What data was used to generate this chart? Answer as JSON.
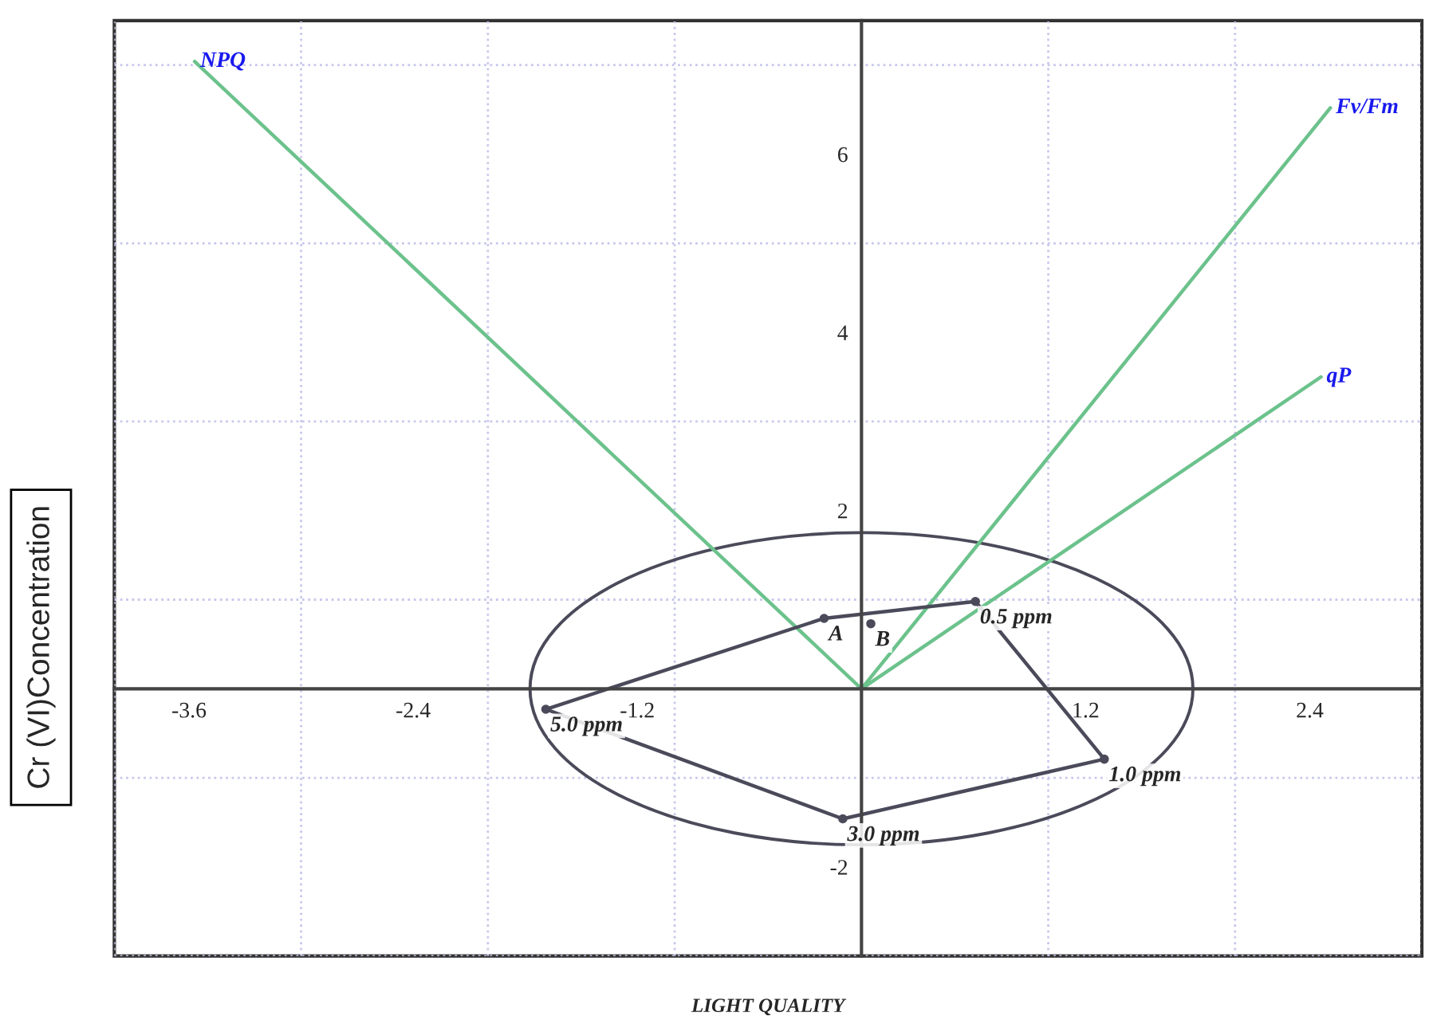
{
  "chart_data": {
    "type": "line",
    "xlabel": "LIGHT QUALITY",
    "ylabel": "Cr (VI)Concentration",
    "xlim": [
      -4,
      3.0
    ],
    "ylim": [
      -3,
      7.5
    ],
    "xticks": [
      {
        "value": -4,
        "label": null
      },
      {
        "value": -3,
        "label": null
      },
      {
        "value": -2,
        "label": null
      },
      {
        "value": -1,
        "label": null
      },
      {
        "value": 1,
        "label": null
      },
      {
        "value": 2,
        "label": null
      },
      {
        "value": 3,
        "label": null
      },
      {
        "value": -3.6,
        "label": "-3.6"
      },
      {
        "value": -2.4,
        "label": "-2.4"
      },
      {
        "value": -1.2,
        "label": "-1.2"
      },
      {
        "value": 1.2,
        "label": "1.2"
      },
      {
        "value": 2.4,
        "label": "2.4"
      }
    ],
    "yticks": [
      {
        "value": -3,
        "label": null
      },
      {
        "value": -1,
        "label": null
      },
      {
        "value": 1,
        "label": null
      },
      {
        "value": 3,
        "label": null
      },
      {
        "value": 5,
        "label": null
      },
      {
        "value": 7,
        "label": null
      },
      -2,
      2,
      4,
      6
    ],
    "grid": true,
    "legend": false,
    "series": [
      {
        "name": "NPQ",
        "color": "#6cc28c",
        "x": [
          0,
          -3.57
        ],
        "values": [
          0,
          7.04
        ]
      },
      {
        "name": "Fv/Fm",
        "color": "#6cc28c",
        "x": [
          0,
          2.51
        ],
        "values": [
          0,
          6.52
        ]
      },
      {
        "name": "qP",
        "color": "#6cc28c",
        "x": [
          0,
          2.46
        ],
        "values": [
          0,
          3.5
        ]
      },
      {
        "type": "line",
        "color": "#4a4a5a",
        "x": [
          -1.69,
          -0.2,
          0.61,
          1.3
        ],
        "values": [
          -0.23,
          0.79,
          0.98,
          -0.79
        ]
      },
      {
        "type": "line",
        "color": "#4a4a5a",
        "x": [
          -1.69,
          -0.1,
          1.3
        ],
        "values": [
          -0.23,
          -1.46,
          -0.79
        ]
      },
      {
        "type": "scatter",
        "color": "#4a4a5a",
        "marker": "circle",
        "x": [
          -0.2,
          0.61,
          1.3,
          -0.1,
          -1.69,
          0.05
        ],
        "values": [
          0.79,
          0.98,
          -0.79,
          -1.46,
          -0.23,
          0.73
        ]
      }
    ],
    "annotations": [
      {
        "text": "A",
        "x": -0.2,
        "y": 0.79
      },
      {
        "text": "B",
        "x": 0.05,
        "y": 0.73
      },
      {
        "text": "0.5 ppm",
        "x": 0.61,
        "y": 0.98
      },
      {
        "text": "1.0 ppm",
        "x": 1.3,
        "y": -0.79
      },
      {
        "text": "3.0 ppm",
        "x": -0.1,
        "y": -1.46
      },
      {
        "text": "5.0 ppm",
        "x": -1.69,
        "y": -0.23
      }
    ]
  }
}
